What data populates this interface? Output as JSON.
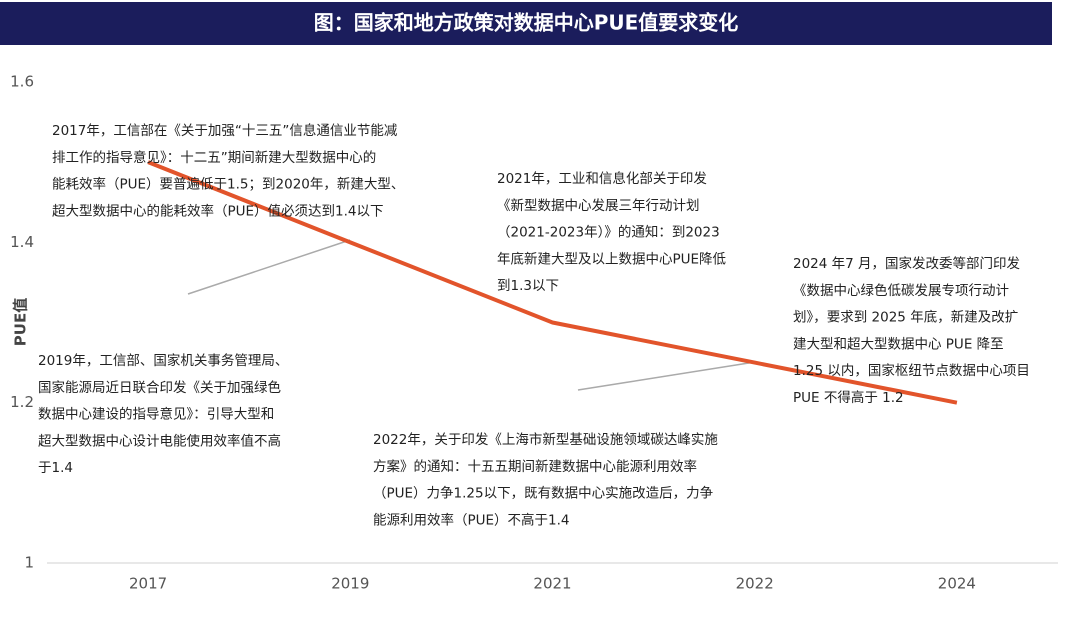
{
  "chart_data": {
    "type": "line",
    "title": "图：国家和地方政策对数据中心PUE值要求变化",
    "y_label": "PUE值",
    "categories": [
      "2017",
      "2019",
      "2021",
      "2022",
      "2024"
    ],
    "values": [
      1.5,
      1.4,
      1.3,
      1.25,
      1.2
    ],
    "color": "#e2542b",
    "ylim": [
      1,
      1.6
    ],
    "yticks": [
      1,
      1.2,
      1.4,
      1.6
    ],
    "grid": false,
    "annotations": [
      [
        "2017年，工信部在《关于加强“十三五”信息通信业节能减",
        "排工作的指导意见》：十二五”期间新建大型数据中心的",
        "能耗效率（PUE）要普遍低于1.5；到2020年，新建大型、",
        "超大型数据中心的能耗效率（PUE）值必须达到1.4以下"
      ],
      [
        "2021年，工业和信息化部关于印发",
        "《新型数据中心发展三年行动计划",
        "（2021-2023年）》的通知：到2023",
        "年底新建大型及以上数据中心PUE降低",
        "到1.3以下"
      ],
      [
        "2024 年7 月，国家发改委等部门印发",
        "《数据中心绿色低碳发展专项行动计",
        "划》，要求到 2025 年底，新建及改扩",
        "建大型和超大型数据中心 PUE 降至",
        "1.25 以内，国家枢纽节点数据中心项目",
        "PUE 不得高于 1.2"
      ],
      [
        "2019年，工信部、国家机关事务管理局、",
        "国家能源局近日联合印发《关于加强绿色",
        "数据中心建设的指导意见》：引导大型和",
        "超大型数据中心设计电能使用效率值不高",
        "于1.4"
      ],
      [
        "2022年，关于印发《上海市新型基础设施领域碳达峰实施",
        "方案》的通知：十五五期间新建数据中心能源利用效率",
        "（PUE）力争1.25以下，既有数据中心实施改造后，力争",
        "能源利用效率（PUE）不高于1.4"
      ]
    ]
  }
}
